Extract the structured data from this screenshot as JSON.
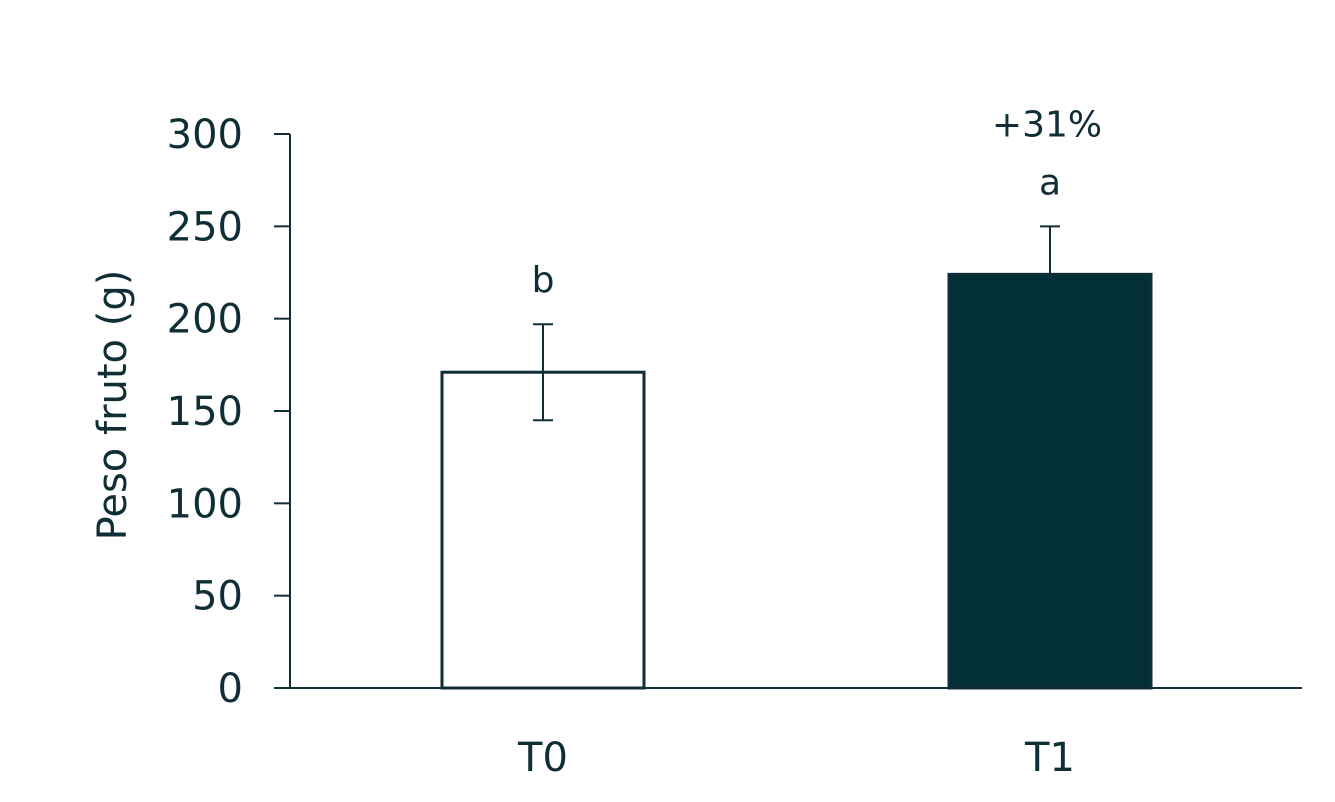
{
  "colors": {
    "axis": "#0f2e35",
    "bar_t0_fill": "#ffffff",
    "bar_t1_fill": "#032f36",
    "text": "#0f2e35"
  },
  "chart_data": {
    "type": "bar",
    "categories": [
      "T0",
      "T1"
    ],
    "values": [
      171,
      224
    ],
    "errors": [
      26,
      26
    ],
    "significance_letters": [
      "b",
      "a"
    ],
    "annotations": [
      {
        "category": "T1",
        "text": "+31%"
      }
    ],
    "title": "",
    "xlabel": "",
    "ylabel": "Peso fruto (g)",
    "ylim": [
      0,
      300
    ],
    "yticks": [
      0,
      50,
      100,
      150,
      200,
      250,
      300
    ],
    "grid": false,
    "legend": "none"
  }
}
